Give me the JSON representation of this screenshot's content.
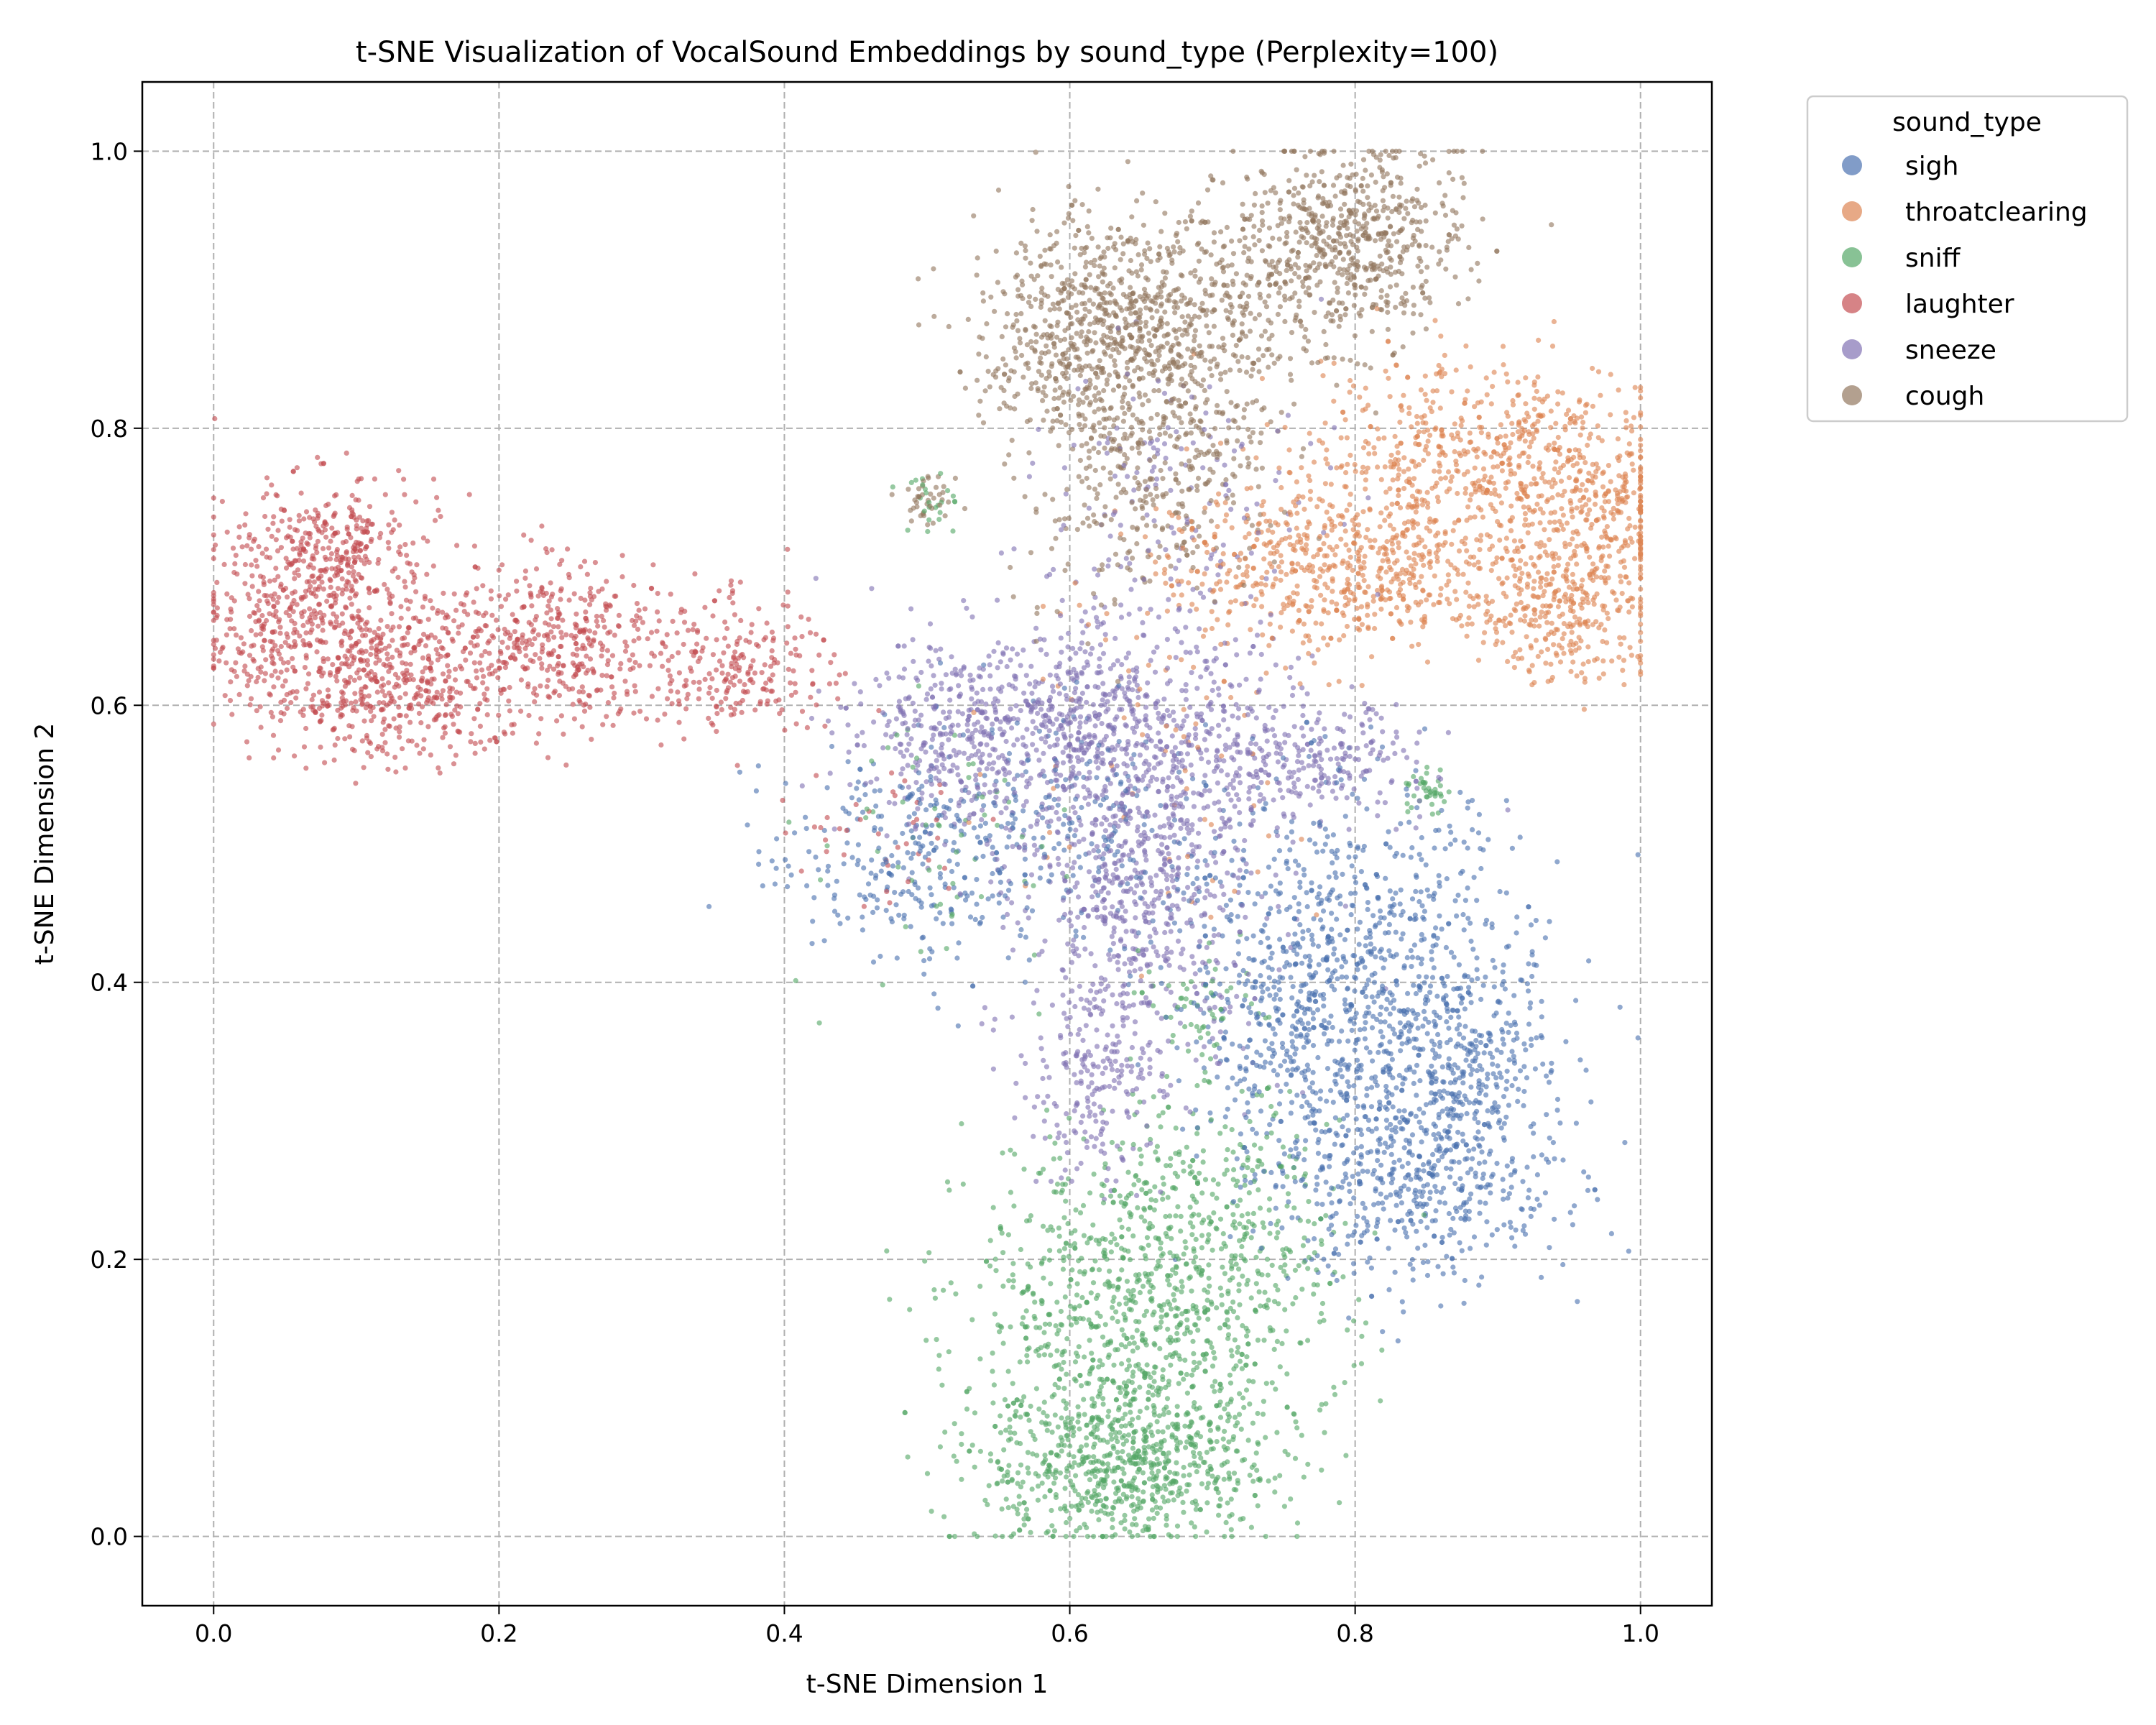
{
  "chart_data": {
    "type": "scatter",
    "title": "t-SNE Visualization of VocalSound Embeddings by sound_type (Perplexity=100)",
    "xlabel": "t-SNE Dimension 1",
    "ylabel": "t-SNE Dimension 2",
    "xlim": [
      -0.05,
      1.05
    ],
    "ylim": [
      -0.05,
      1.05
    ],
    "x_ticks": [
      "0.0",
      "0.2",
      "0.4",
      "0.6",
      "0.8",
      "1.0"
    ],
    "y_ticks": [
      "0.0",
      "0.2",
      "0.4",
      "0.6",
      "0.8",
      "1.0"
    ],
    "grid": true,
    "legend": {
      "title": "sound_type",
      "placement": "outside-top-right"
    },
    "series": [
      {
        "name": "sigh",
        "color": "#4c72b0",
        "clusters": [
          {
            "center": [
              0.8,
              0.42
            ],
            "spread": [
              0.06,
              0.06
            ],
            "count": 700
          },
          {
            "center": [
              0.87,
              0.34
            ],
            "spread": [
              0.035,
              0.035
            ],
            "count": 300
          },
          {
            "center": [
              0.84,
              0.26
            ],
            "spread": [
              0.05,
              0.04
            ],
            "count": 550
          },
          {
            "center": [
              0.76,
              0.36
            ],
            "spread": [
              0.04,
              0.05
            ],
            "count": 300
          },
          {
            "center": [
              0.49,
              0.49
            ],
            "spread": [
              0.05,
              0.04
            ],
            "count": 300
          },
          {
            "center": [
              0.61,
              0.52
            ],
            "spread": [
              0.05,
              0.05
            ],
            "count": 180
          }
        ]
      },
      {
        "name": "throatclearing",
        "color": "#dd8452",
        "clusters": [
          {
            "center": [
              0.89,
              0.78
            ],
            "spread": [
              0.06,
              0.035
            ],
            "count": 600
          },
          {
            "center": [
              0.97,
              0.73
            ],
            "spread": [
              0.03,
              0.03
            ],
            "count": 250
          },
          {
            "center": [
              0.8,
              0.7
            ],
            "spread": [
              0.07,
              0.03
            ],
            "count": 700
          },
          {
            "center": [
              0.95,
              0.665
            ],
            "spread": [
              0.03,
              0.025
            ],
            "count": 250
          },
          {
            "center": [
              0.66,
              0.57
            ],
            "spread": [
              0.06,
              0.06
            ],
            "count": 70
          }
        ]
      },
      {
        "name": "sniff",
        "color": "#55a868",
        "clusters": [
          {
            "center": [
              0.64,
              0.05
            ],
            "spread": [
              0.05,
              0.028
            ],
            "count": 700
          },
          {
            "center": [
              0.65,
              0.16
            ],
            "spread": [
              0.06,
              0.06
            ],
            "count": 1000
          },
          {
            "center": [
              0.71,
              0.24
            ],
            "spread": [
              0.04,
              0.05
            ],
            "count": 200
          },
          {
            "center": [
              0.69,
              0.38
            ],
            "spread": [
              0.02,
              0.02
            ],
            "count": 60
          },
          {
            "center": [
              0.85,
              0.54
            ],
            "spread": [
              0.008,
              0.008
            ],
            "count": 40
          },
          {
            "center": [
              0.5,
              0.75
            ],
            "spread": [
              0.01,
              0.01
            ],
            "count": 25
          },
          {
            "center": [
              0.5,
              0.49
            ],
            "spread": [
              0.05,
              0.05
            ],
            "count": 60
          }
        ]
      },
      {
        "name": "laughter",
        "color": "#c44e52",
        "clusters": [
          {
            "center": [
              0.08,
              0.7
            ],
            "spread": [
              0.04,
              0.03
            ],
            "count": 500
          },
          {
            "center": [
              0.12,
              0.615
            ],
            "spread": [
              0.04,
              0.03
            ],
            "count": 550
          },
          {
            "center": [
              0.03,
              0.64
            ],
            "spread": [
              0.02,
              0.02
            ],
            "count": 120
          },
          {
            "center": [
              0.24,
              0.645
            ],
            "spread": [
              0.035,
              0.03
            ],
            "count": 400
          },
          {
            "center": [
              0.36,
              0.63
            ],
            "spread": [
              0.035,
              0.025
            ],
            "count": 250
          },
          {
            "center": [
              0.47,
              0.51
            ],
            "spread": [
              0.03,
              0.03
            ],
            "count": 40
          }
        ]
      },
      {
        "name": "sneeze",
        "color": "#8172b3",
        "clusters": [
          {
            "center": [
              0.54,
              0.58
            ],
            "spread": [
              0.05,
              0.035
            ],
            "count": 500
          },
          {
            "center": [
              0.65,
              0.57
            ],
            "spread": [
              0.06,
              0.05
            ],
            "count": 700
          },
          {
            "center": [
              0.65,
              0.45
            ],
            "spread": [
              0.04,
              0.06
            ],
            "count": 500
          },
          {
            "center": [
              0.62,
              0.33
            ],
            "spread": [
              0.025,
              0.04
            ],
            "count": 220
          },
          {
            "center": [
              0.77,
              0.56
            ],
            "spread": [
              0.04,
              0.02
            ],
            "count": 200
          },
          {
            "center": [
              0.68,
              0.75
            ],
            "spread": [
              0.05,
              0.06
            ],
            "count": 150
          }
        ]
      },
      {
        "name": "cough",
        "color": "#937860",
        "clusters": [
          {
            "center": [
              0.655,
              0.88
            ],
            "spread": [
              0.05,
              0.04
            ],
            "count": 700
          },
          {
            "center": [
              0.6,
              0.86
            ],
            "spread": [
              0.035,
              0.04
            ],
            "count": 300
          },
          {
            "center": [
              0.795,
              0.935
            ],
            "spread": [
              0.04,
              0.035
            ],
            "count": 650
          },
          {
            "center": [
              0.68,
              0.79
            ],
            "spread": [
              0.04,
              0.04
            ],
            "count": 250
          },
          {
            "center": [
              0.63,
              0.74
            ],
            "spread": [
              0.04,
              0.04
            ],
            "count": 120
          },
          {
            "center": [
              0.5,
              0.75
            ],
            "spread": [
              0.008,
              0.008
            ],
            "count": 40
          }
        ]
      }
    ]
  }
}
